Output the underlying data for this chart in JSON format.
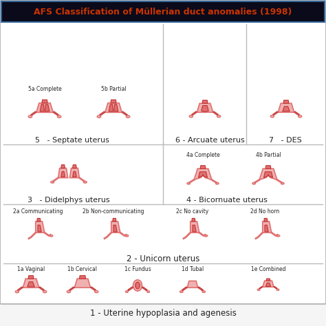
{
  "title": "AFS Classification of Müllerian duct anomalies (1998)",
  "title_color": "#cc3300",
  "title_bg": "#0a0a1a",
  "main_bg": "#f5f5f5",
  "border_color": "#555555",
  "section1_title": "1 - Uterine hypoplasia and agenesis",
  "section2_title": "2 - Unicorn uterus",
  "section3_title": "3   - Didelphys uterus",
  "section4_title": "4 - Bicornuate uterus",
  "section5_title": "5   - Septate uterus",
  "section6_title": "6 - Arcuate uterus",
  "section7_title": "7   - DES",
  "row1_labels": [
    "1a Vaginal",
    "1b Cervical",
    "1c Fundus",
    "1d Tubal",
    "1e Combined"
  ],
  "row2_labels": [
    "2a Communicating",
    "2b Non-communicating",
    "2c No cavity",
    "2d No horn"
  ],
  "row3_labels": [
    "4a Complete",
    "4b Partial"
  ],
  "row4_labels": [
    "5a Complete",
    "5b Partial"
  ],
  "text_color": "#222222",
  "line_color": "#999999",
  "uterus_color": "#e07070",
  "uterus_light": "#f0b0b0",
  "uterus_dark": "#c03030"
}
